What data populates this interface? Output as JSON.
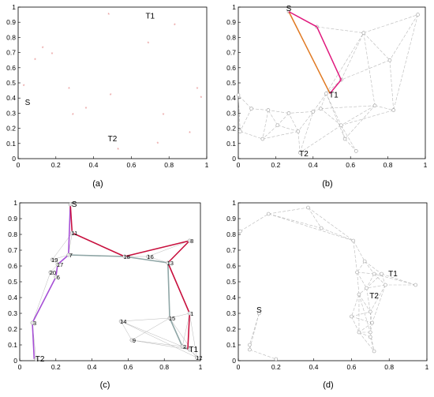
{
  "captions": [
    "(a)",
    "(b)",
    "(c)",
    "(d)"
  ],
  "colors": {
    "mesh": "#b8b8b8",
    "point_a": "#e58a8a",
    "node": "#9a9a9a",
    "path_magenta": "#e0197d",
    "path_orange": "#e07820",
    "path_crimson": "#c8103e",
    "path_purple": "#a64fd6",
    "path_teal": "#8fa6a6"
  },
  "panels": [
    {
      "id": "a",
      "xlim": [
        0,
        1
      ],
      "ylim": [
        0,
        1
      ],
      "xticks": [
        "0",
        "0.2",
        "0.4",
        "0.6",
        "0.8",
        "1"
      ],
      "yticks": [
        "0",
        "0.1",
        "0.2",
        "0.3",
        "0.4",
        "0.5",
        "0.6",
        "0.7",
        "0.8",
        "0.9",
        "1"
      ],
      "points": [
        [
          0.48,
          0.95
        ],
        [
          0.83,
          0.88
        ],
        [
          0.13,
          0.73
        ],
        [
          0.09,
          0.65
        ],
        [
          0.18,
          0.69
        ],
        [
          0.69,
          0.76
        ],
        [
          0.03,
          0.48
        ],
        [
          0.27,
          0.46
        ],
        [
          0.49,
          0.42
        ],
        [
          0.95,
          0.46
        ],
        [
          0.97,
          0.4
        ],
        [
          0.36,
          0.33
        ],
        [
          0.29,
          0.29
        ],
        [
          0.77,
          0.29
        ],
        [
          0.91,
          0.17
        ],
        [
          0.53,
          0.06
        ],
        [
          0.74,
          0.1
        ]
      ],
      "labels": [
        {
          "text": "T1",
          "x": 0.7,
          "y": 0.94
        },
        {
          "text": "S",
          "x": 0.05,
          "y": 0.37
        },
        {
          "text": "T2",
          "x": 0.5,
          "y": 0.13
        }
      ]
    },
    {
      "id": "b",
      "xlim": [
        0,
        1
      ],
      "ylim": [
        0,
        1
      ],
      "xticks": [
        "0",
        "0.2",
        "0.4",
        "0.6",
        "0.8",
        "1"
      ],
      "yticks": [
        "0",
        "0.1",
        "0.2",
        "0.3",
        "0.4",
        "0.5",
        "0.6",
        "0.7",
        "0.8",
        "0.9",
        "1"
      ],
      "nodes": [
        [
          0.27,
          0.97
        ],
        [
          0.42,
          0.87
        ],
        [
          0.67,
          0.83
        ],
        [
          0.96,
          0.95
        ],
        [
          0.81,
          0.65
        ],
        [
          0.55,
          0.52
        ],
        [
          0.47,
          0.43
        ],
        [
          0.0,
          0.42
        ],
        [
          0.07,
          0.33
        ],
        [
          0.16,
          0.32
        ],
        [
          0.27,
          0.3
        ],
        [
          0.4,
          0.31
        ],
        [
          0.44,
          0.33
        ],
        [
          0.55,
          0.22
        ],
        [
          0.32,
          0.18
        ],
        [
          0.01,
          0.18
        ],
        [
          0.13,
          0.13
        ],
        [
          0.57,
          0.13
        ],
        [
          0.83,
          0.32
        ],
        [
          0.63,
          0.05
        ],
        [
          0.33,
          0.04
        ],
        [
          0.21,
          0.22
        ],
        [
          0.73,
          0.35
        ]
      ],
      "mesh_edges": [
        [
          0,
          1
        ],
        [
          1,
          2
        ],
        [
          2,
          3
        ],
        [
          2,
          4
        ],
        [
          3,
          4
        ],
        [
          4,
          5
        ],
        [
          5,
          2
        ],
        [
          5,
          6
        ],
        [
          6,
          2
        ],
        [
          4,
          18
        ],
        [
          18,
          13
        ],
        [
          13,
          19
        ],
        [
          13,
          17
        ],
        [
          17,
          6
        ],
        [
          6,
          11
        ],
        [
          6,
          12
        ],
        [
          11,
          12
        ],
        [
          12,
          13
        ],
        [
          11,
          10
        ],
        [
          10,
          9
        ],
        [
          9,
          8
        ],
        [
          8,
          7
        ],
        [
          7,
          15
        ],
        [
          15,
          16
        ],
        [
          16,
          14
        ],
        [
          14,
          10
        ],
        [
          14,
          20
        ],
        [
          20,
          11
        ],
        [
          21,
          9
        ],
        [
          21,
          14
        ],
        [
          21,
          16
        ],
        [
          11,
          14
        ],
        [
          12,
          22
        ],
        [
          22,
          18
        ],
        [
          22,
          13
        ],
        [
          17,
          19
        ],
        [
          13,
          20
        ],
        [
          8,
          15
        ],
        [
          9,
          16
        ],
        [
          3,
          18
        ],
        [
          2,
          22
        ],
        [
          10,
          21
        ],
        [
          6,
          13
        ],
        [
          17,
          22
        ]
      ],
      "path_magenta": [
        [
          0.27,
          0.97
        ],
        [
          0.42,
          0.87
        ],
        [
          0.55,
          0.52
        ],
        [
          0.49,
          0.43
        ]
      ],
      "path_orange": [
        [
          0.27,
          0.97
        ],
        [
          0.49,
          0.43
        ]
      ],
      "labels": [
        {
          "text": "S",
          "x": 0.27,
          "y": 0.99
        },
        {
          "text": "T1",
          "x": 0.51,
          "y": 0.42
        },
        {
          "text": "T2",
          "x": 0.35,
          "y": 0.03
        }
      ]
    },
    {
      "id": "c",
      "xlim": [
        0,
        1
      ],
      "ylim": [
        0,
        1
      ],
      "xticks": [
        "0",
        "0.2",
        "0.4",
        "0.6",
        "0.8",
        "1"
      ],
      "yticks": [
        "0",
        "0.1",
        "0.2",
        "0.3",
        "0.4",
        "0.5",
        "0.6",
        "0.7",
        "0.8",
        "0.9",
        "1"
      ],
      "nodes": [
        {
          "id": "S",
          "x": 0.28,
          "y": 0.99
        },
        {
          "id": "11",
          "x": 0.29,
          "y": 0.81
        },
        {
          "id": "7",
          "x": 0.27,
          "y": 0.67
        },
        {
          "id": "19",
          "x": 0.18,
          "y": 0.64
        },
        {
          "id": "17",
          "x": 0.21,
          "y": 0.61
        },
        {
          "id": "20",
          "x": 0.17,
          "y": 0.56
        },
        {
          "id": "6",
          "x": 0.2,
          "y": 0.53
        },
        {
          "id": "3",
          "x": 0.07,
          "y": 0.24
        },
        {
          "id": "T2",
          "x": 0.09,
          "y": 0.01
        },
        {
          "id": "16",
          "x": 0.71,
          "y": 0.66
        },
        {
          "id": "18",
          "x": 0.58,
          "y": 0.66
        },
        {
          "id": "8",
          "x": 0.94,
          "y": 0.76
        },
        {
          "id": "13",
          "x": 0.82,
          "y": 0.62
        },
        {
          "id": "1",
          "x": 0.94,
          "y": 0.3
        },
        {
          "id": "15",
          "x": 0.83,
          "y": 0.27
        },
        {
          "id": "14",
          "x": 0.56,
          "y": 0.25
        },
        {
          "id": "9",
          "x": 0.62,
          "y": 0.13
        },
        {
          "id": "2",
          "x": 0.9,
          "y": 0.09
        },
        {
          "id": "T1",
          "x": 0.94,
          "y": 0.07
        },
        {
          "id": "12",
          "x": 0.98,
          "y": 0.02
        }
      ],
      "path_crimson": [
        [
          0.28,
          0.99
        ],
        [
          0.29,
          0.81
        ],
        [
          0.58,
          0.66
        ],
        [
          0.94,
          0.76
        ],
        [
          0.82,
          0.62
        ],
        [
          0.94,
          0.3
        ],
        [
          0.93,
          0.07
        ]
      ],
      "path_purple": [
        [
          0.28,
          0.99
        ],
        [
          0.27,
          0.67
        ],
        [
          0.21,
          0.61
        ],
        [
          0.2,
          0.53
        ],
        [
          0.07,
          0.24
        ],
        [
          0.08,
          0.01
        ]
      ],
      "path_teal": [
        [
          0.27,
          0.67
        ],
        [
          0.58,
          0.66
        ],
        [
          0.82,
          0.62
        ],
        [
          0.83,
          0.27
        ],
        [
          0.9,
          0.09
        ],
        [
          0.94,
          0.07
        ]
      ],
      "mesh_edges": [
        [
          "S",
          "11"
        ],
        [
          "11",
          "7"
        ],
        [
          "7",
          "19"
        ],
        [
          "19",
          "17"
        ],
        [
          "17",
          "20"
        ],
        [
          "20",
          "6"
        ],
        [
          "6",
          "3"
        ],
        [
          "3",
          "T2"
        ],
        [
          "11",
          "19"
        ],
        [
          "7",
          "18"
        ],
        [
          "18",
          "16"
        ],
        [
          "16",
          "13"
        ],
        [
          "16",
          "8"
        ],
        [
          "13",
          "8"
        ],
        [
          "13",
          "1"
        ],
        [
          "1",
          "15"
        ],
        [
          "15",
          "14"
        ],
        [
          "14",
          "9"
        ],
        [
          "9",
          "2"
        ],
        [
          "2",
          "T1"
        ],
        [
          "T1",
          "12"
        ],
        [
          "15",
          "2"
        ],
        [
          "14",
          "2"
        ],
        [
          "9",
          "15"
        ],
        [
          "1",
          "12"
        ],
        [
          "15",
          "12"
        ],
        [
          "11",
          "18"
        ],
        [
          "7",
          "17"
        ],
        [
          "3",
          "20"
        ],
        [
          "1",
          "2"
        ],
        [
          "14",
          "12"
        ],
        [
          "9",
          "T1"
        ]
      ]
    },
    {
      "id": "d",
      "xlim": [
        0,
        1
      ],
      "ylim": [
        0,
        1
      ],
      "xticks": [
        "0",
        "0.2",
        "0.4",
        "0.6",
        "0.8",
        "1"
      ],
      "yticks": [
        "0",
        "0.1",
        "0.2",
        "0.3",
        "0.4",
        "0.5",
        "0.6",
        "0.7",
        "0.8",
        "0.9",
        "1"
      ],
      "nodes": [
        [
          0.01,
          0.82
        ],
        [
          0.16,
          0.93
        ],
        [
          0.37,
          0.97
        ],
        [
          0.44,
          0.84
        ],
        [
          0.61,
          0.76
        ],
        [
          0.67,
          0.63
        ],
        [
          0.63,
          0.56
        ],
        [
          0.72,
          0.55
        ],
        [
          0.76,
          0.55
        ],
        [
          0.94,
          0.48
        ],
        [
          0.78,
          0.48
        ],
        [
          0.68,
          0.46
        ],
        [
          0.64,
          0.42
        ],
        [
          0.6,
          0.28
        ],
        [
          0.7,
          0.31
        ],
        [
          0.71,
          0.24
        ],
        [
          0.7,
          0.18
        ],
        [
          0.64,
          0.18
        ],
        [
          0.7,
          0.15
        ],
        [
          0.72,
          0.06
        ],
        [
          0.11,
          0.3
        ],
        [
          0.06,
          0.1
        ],
        [
          0.06,
          0.07
        ],
        [
          0.2,
          0.01
        ]
      ],
      "mesh_edges": [
        [
          0,
          1
        ],
        [
          1,
          2
        ],
        [
          2,
          3
        ],
        [
          3,
          4
        ],
        [
          4,
          5
        ],
        [
          5,
          6
        ],
        [
          6,
          7
        ],
        [
          7,
          8
        ],
        [
          8,
          9
        ],
        [
          9,
          10
        ],
        [
          10,
          11
        ],
        [
          11,
          12
        ],
        [
          12,
          13
        ],
        [
          13,
          14
        ],
        [
          14,
          15
        ],
        [
          15,
          16
        ],
        [
          16,
          17
        ],
        [
          17,
          18
        ],
        [
          18,
          19
        ],
        [
          1,
          3
        ],
        [
          2,
          4
        ],
        [
          5,
          7
        ],
        [
          6,
          11
        ],
        [
          7,
          10
        ],
        [
          8,
          10
        ],
        [
          11,
          14
        ],
        [
          12,
          14
        ],
        [
          13,
          15
        ],
        [
          14,
          16
        ],
        [
          15,
          17
        ],
        [
          16,
          19
        ],
        [
          17,
          19
        ],
        [
          7,
          11
        ],
        [
          10,
          14
        ],
        [
          9,
          7
        ],
        [
          20,
          21
        ],
        [
          21,
          22
        ],
        [
          22,
          23
        ],
        [
          20,
          22
        ],
        [
          6,
          12
        ],
        [
          12,
          17
        ],
        [
          13,
          17
        ],
        [
          8,
          11
        ],
        [
          10,
          15
        ],
        [
          1,
          4
        ],
        [
          5,
          8
        ],
        [
          12,
          16
        ],
        [
          4,
          6
        ]
      ],
      "labels": [
        {
          "text": "T1",
          "x": 0.82,
          "y": 0.55
        },
        {
          "text": "T2",
          "x": 0.72,
          "y": 0.41
        },
        {
          "text": "S",
          "x": 0.11,
          "y": 0.32
        }
      ]
    }
  ]
}
